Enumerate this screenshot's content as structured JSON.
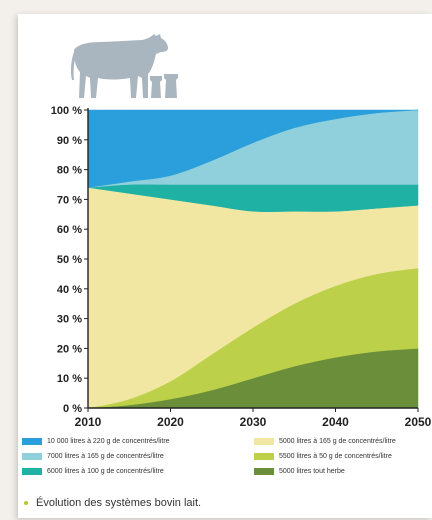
{
  "chart_data": {
    "type": "area",
    "stacked": true,
    "title": "",
    "xlabel": "",
    "ylabel": "",
    "x_ticks": [
      "2010",
      "2020",
      "2030",
      "2040",
      "2050"
    ],
    "y_ticks": [
      "0 %",
      "10 %",
      "20 %",
      "30 %",
      "40 %",
      "50 %",
      "60 %",
      "70 %",
      "80 %",
      "90 %",
      "100 %"
    ],
    "ylim": [
      0,
      100
    ],
    "xlim": [
      2010,
      2050
    ],
    "grid": false,
    "legend_position": "bottom",
    "x": [
      2010,
      2015,
      2020,
      2025,
      2030,
      2035,
      2040,
      2045,
      2050
    ],
    "series": [
      {
        "name": "5000 litres tout herbe",
        "color": "#6b8e3a",
        "values": [
          0,
          1,
          3,
          6,
          10,
          14,
          17,
          19,
          20
        ]
      },
      {
        "name": "5500 litres à 50 g de concentrés/litre",
        "color": "#bdd04a",
        "values": [
          0,
          2,
          6,
          12,
          17,
          21,
          24,
          26,
          27
        ]
      },
      {
        "name": "5000 litres à 165 g de concentrés/litre",
        "color": "#f1e7a3",
        "values": [
          74,
          69,
          61,
          50,
          39,
          31,
          25,
          22,
          21
        ]
      },
      {
        "name": "6000 litres à 100 g de concentrés/litre",
        "color": "#1fb1a4",
        "values": [
          0,
          3,
          5,
          7,
          9,
          9,
          9,
          8,
          7
        ]
      },
      {
        "name": "7000 litres à 165 g de concentrés/litre",
        "color": "#8fd0dc",
        "values": [
          0,
          1,
          3,
          8,
          14,
          19,
          22,
          24,
          25
        ]
      },
      {
        "name": "10 000 litres à 220 g de concentrés/litre",
        "color": "#2a9fdc",
        "values": [
          26,
          24,
          22,
          17,
          11,
          6,
          3,
          1,
          0
        ]
      }
    ]
  },
  "legend": [
    {
      "label": "10 000 litres à 220 g de concentrés/litre",
      "color": "#2a9fdc"
    },
    {
      "label": "7000 litres à 165 g de concentrés/litre",
      "color": "#8fd0dc"
    },
    {
      "label": "6000 litres à 100 g de concentrés/litre",
      "color": "#1fb1a4"
    },
    {
      "label": "5000 litres à 165 g de concentrés/litre",
      "color": "#f1e7a3"
    },
    {
      "label": "5500 litres à 50 g de concentrés/litre",
      "color": "#bdd04a"
    },
    {
      "label": "5000 litres tout herbe",
      "color": "#6b8e3a"
    }
  ],
  "caption": "Évolution des systèmes bovin lait.",
  "colors": {
    "axis": "#222222",
    "icon": "#aab6bf",
    "bullet": "#b7c63a"
  },
  "icons": {
    "header": "cow-and-milk-cans-icon",
    "caption": "bullet-icon"
  }
}
